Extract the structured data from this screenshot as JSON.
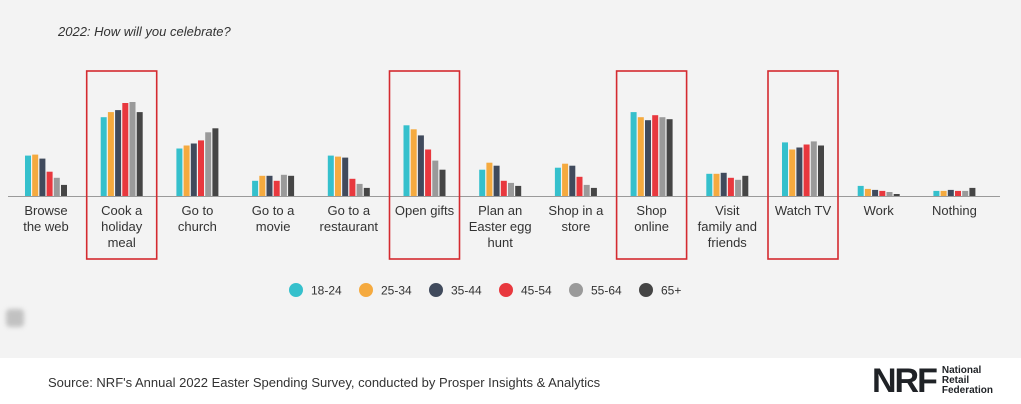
{
  "chart_data": {
    "type": "bar",
    "title": "2022: How will you celebrate?",
    "categories": [
      [
        "Browse",
        "the web"
      ],
      [
        "Cook a",
        "holiday",
        "meal"
      ],
      [
        "Go to",
        "church"
      ],
      [
        "Go to a",
        "movie"
      ],
      [
        "Go to a",
        "restaurant"
      ],
      [
        "Open gifts"
      ],
      [
        "Plan an",
        "Easter egg",
        "hunt"
      ],
      [
        "Shop in a",
        "store"
      ],
      [
        "Shop",
        "online"
      ],
      [
        "Visit",
        "family and",
        "friends"
      ],
      [
        "Watch TV"
      ],
      [
        "Work"
      ],
      [
        "Nothing"
      ]
    ],
    "highlighted": [
      1,
      5,
      8,
      10
    ],
    "ylim": [
      0,
      95
    ],
    "grid": false,
    "legend_position": "bottom",
    "series": [
      {
        "name": "18-24",
        "color": "#35c0cc",
        "values": [
          40,
          78,
          47,
          15,
          40,
          70,
          26,
          28,
          83,
          22,
          53,
          10,
          5
        ]
      },
      {
        "name": "25-34",
        "color": "#f5aa3f",
        "values": [
          41,
          83,
          50,
          20,
          39,
          66,
          33,
          32,
          78,
          22,
          46,
          7,
          5
        ]
      },
      {
        "name": "35-44",
        "color": "#404a5c",
        "values": [
          37,
          85,
          52,
          20,
          38,
          60,
          30,
          30,
          75,
          23,
          48,
          6,
          6
        ]
      },
      {
        "name": "45-54",
        "color": "#e8383e",
        "values": [
          24,
          92,
          55,
          15,
          17,
          46,
          15,
          19,
          80,
          18,
          51,
          5,
          5
        ]
      },
      {
        "name": "55-64",
        "color": "#9a9a9a",
        "values": [
          18,
          93,
          63,
          21,
          12,
          35,
          13,
          11,
          78,
          16,
          54,
          4,
          5
        ]
      },
      {
        "name": "65+",
        "color": "#454545",
        "values": [
          11,
          83,
          67,
          20,
          8,
          26,
          10,
          8,
          76,
          20,
          50,
          2,
          8
        ]
      }
    ]
  },
  "footer": {
    "source": "Source: NRF's Annual 2022 Easter Spending Survey, conducted by Prosper Insights & Analytics",
    "logo_mark": "NRF",
    "logo_line1": "National",
    "logo_line2": "Retail",
    "logo_line3": "Federation"
  }
}
